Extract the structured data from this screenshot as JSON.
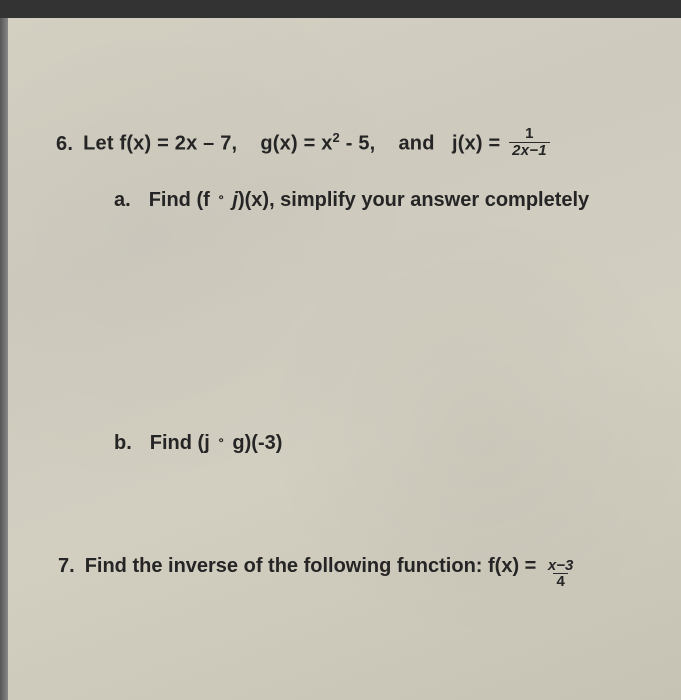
{
  "page": {
    "background_color": "#cecabe",
    "text_color": "#2a2a2a",
    "font_family": "Segoe UI, Arial, sans-serif",
    "base_fontsize": 20,
    "font_weight": 600
  },
  "problem6": {
    "number": "6.",
    "intro": "Let ",
    "f_def": "f(x) = 2x – 7,",
    "g_def": "g(x) = x",
    "g_exp": "2",
    "g_tail": " - 5,",
    "conjunction": "and",
    "j_def": "j(x) =",
    "j_fraction": {
      "numerator": "1",
      "denominator": "2x−1"
    },
    "part_a": {
      "label": "a.",
      "prefix": "Find  (f ",
      "compose": "∘",
      "mid": " j",
      "after": ")(x), simplify your answer completely"
    },
    "part_b": {
      "label": "b.",
      "prefix": "Find  (j ",
      "compose": "∘",
      "mid": " g)(-3)"
    }
  },
  "problem7": {
    "number": "7.",
    "text": "Find the inverse of the following function:  f(x) =",
    "fraction": {
      "numerator": "x−3",
      "denominator": "4"
    }
  }
}
